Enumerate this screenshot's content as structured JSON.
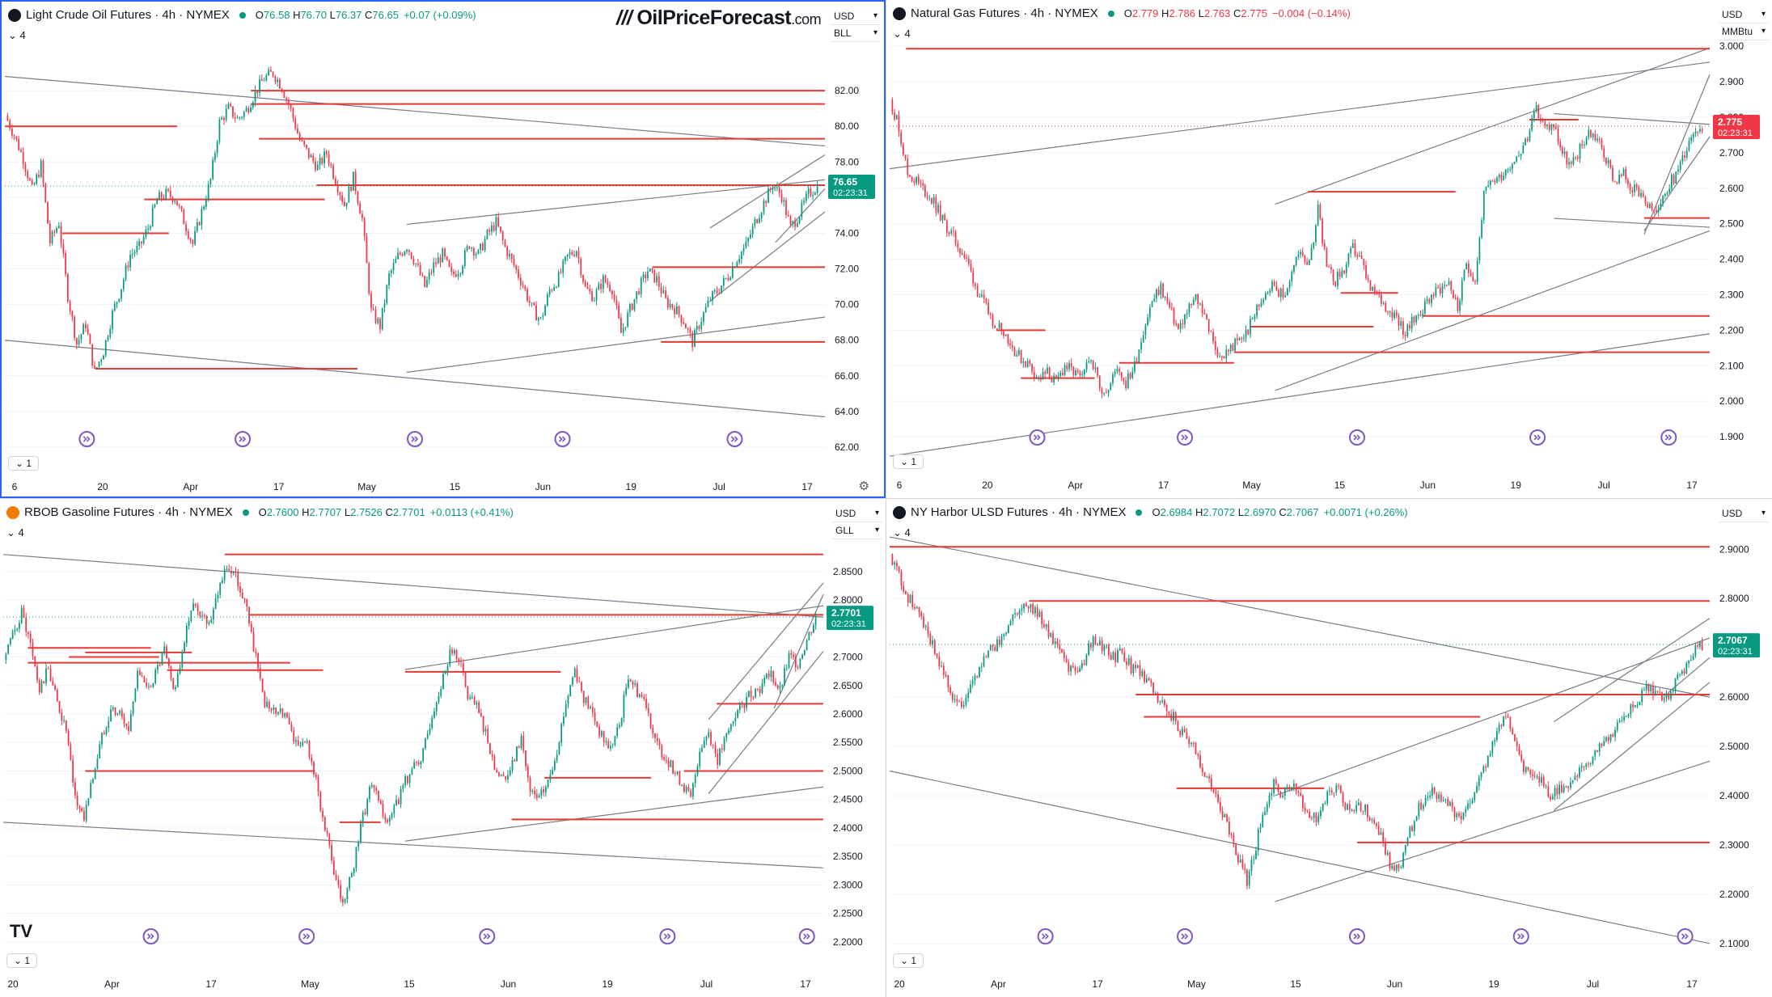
{
  "brand": {
    "watermark_slashes": "///",
    "watermark_name": "OilPriceForecast",
    "watermark_tld": ".com",
    "tv_logo": "TV"
  },
  "panes": [
    {
      "id": "cl",
      "icon": "oil-drop-icon",
      "icon_glyph": "●",
      "icon_color": "#131722",
      "title": "Light Crude Oil Futures · 4h · NYMEX",
      "ohlc": [
        {
          "k": "O",
          "v": "76.58"
        },
        {
          "k": "H",
          "v": "76.70"
        },
        {
          "k": "L",
          "v": "76.37"
        },
        {
          "k": "C",
          "v": "76.65"
        }
      ],
      "change": "+0.07 (+0.09%)",
      "change_color": "#089981",
      "interval_label": "4",
      "currency": "USD",
      "unit": "BLL",
      "bottom_label": "1",
      "last_price": "76.65",
      "countdown": "02:23:31",
      "tag_color": "#089981",
      "ylim": [
        61.5,
        85
      ],
      "yticks": [
        62,
        64,
        66,
        68,
        70,
        72,
        74,
        76,
        78,
        80,
        82
      ],
      "ytick_labels": [
        "62.00",
        "64.00",
        "66.00",
        "68.00",
        "70.00",
        "72.00",
        "74.00",
        "78.00",
        "80.00",
        "82.00"
      ],
      "xticks": [
        "6",
        "20",
        "Apr",
        "17",
        "May",
        "15",
        "Jun",
        "19",
        "Jul",
        "17"
      ],
      "levels": [
        {
          "y": 82.0,
          "x0": 0.3,
          "x1": 1.0
        },
        {
          "y": 81.25,
          "x0": 0.3,
          "x1": 1.0
        },
        {
          "y": 80.0,
          "x0": 0.0,
          "x1": 0.21
        },
        {
          "y": 79.3,
          "x0": 0.31,
          "x1": 1.0
        },
        {
          "y": 76.7,
          "x0": 0.38,
          "x1": 1.0
        },
        {
          "y": 75.9,
          "x0": 0.17,
          "x1": 0.39
        },
        {
          "y": 74.0,
          "x0": 0.07,
          "x1": 0.2
        },
        {
          "y": 72.1,
          "x0": 0.79,
          "x1": 1.0
        },
        {
          "y": 67.9,
          "x0": 0.8,
          "x1": 1.0
        },
        {
          "y": 66.4,
          "x0": 0.11,
          "x1": 0.43
        }
      ],
      "trendlines": [
        {
          "p0": [
            0.0,
            82.8
          ],
          "p1": [
            1.0,
            78.9
          ]
        },
        {
          "p0": [
            0.0,
            68.0
          ],
          "p1": [
            1.0,
            63.7
          ]
        },
        {
          "p0": [
            0.49,
            74.5
          ],
          "p1": [
            1.0,
            77.0
          ]
        },
        {
          "p0": [
            0.49,
            66.2
          ],
          "p1": [
            1.0,
            69.3
          ]
        },
        {
          "p0": [
            0.86,
            74.3
          ],
          "p1": [
            1.0,
            78.4
          ]
        },
        {
          "p0": [
            0.86,
            70.2
          ],
          "p1": [
            1.0,
            75.2
          ]
        },
        {
          "p0": [
            0.94,
            73.5
          ],
          "p1": [
            1.0,
            76.5
          ]
        }
      ],
      "series": [
        80.6,
        79.5,
        78.2,
        76.4,
        77.8,
        73.5,
        74.6,
        70.5,
        67.8,
        68.9,
        66.2,
        67.4,
        69.5,
        71.0,
        72.8,
        73.2,
        74.3,
        75.9,
        76.2,
        76.0,
        74.7,
        73.4,
        75.2,
        77.0,
        80.2,
        81.0,
        80.4,
        80.9,
        81.9,
        82.7,
        83.0,
        82.2,
        80.9,
        79.2,
        78.4,
        77.7,
        78.5,
        77.0,
        75.6,
        77.1,
        74.8,
        69.6,
        68.8,
        71.6,
        72.7,
        73.3,
        72.3,
        71.0,
        72.2,
        72.8,
        71.6,
        72.1,
        73.4,
        72.8,
        73.9,
        74.6,
        73.2,
        72.2,
        71.1,
        69.8,
        69.1,
        70.8,
        71.5,
        72.7,
        73.1,
        70.9,
        70.4,
        71.4,
        70.9,
        68.4,
        69.7,
        70.9,
        71.9,
        71.4,
        70.2,
        69.8,
        69.1,
        67.9,
        69.2,
        70.3,
        70.9,
        71.6,
        72.6,
        73.3,
        74.6,
        75.7,
        76.7,
        76.1,
        74.3,
        75.1,
        76.2,
        76.65
      ],
      "ttl_markers": [
        0.1,
        0.29,
        0.5,
        0.68,
        0.89
      ]
    },
    {
      "id": "ng",
      "icon": "flame-icon",
      "icon_glyph": "●",
      "icon_color": "#131722",
      "title": "Natural Gas Futures · 4h · NYMEX",
      "ohlc": [
        {
          "k": "O",
          "v": "2.779"
        },
        {
          "k": "H",
          "v": "2.786"
        },
        {
          "k": "L",
          "v": "2.763"
        },
        {
          "k": "C",
          "v": "2.775"
        }
      ],
      "change": "−0.004 (−0.14%)",
      "change_color": "#f23645",
      "interval_label": "4",
      "currency": "USD",
      "unit": "MMBtu",
      "bottom_label": "1",
      "last_price": "2.775",
      "countdown": "02:23:31",
      "tag_color": "#f23645",
      "ylim": [
        1.85,
        3.03
      ],
      "yticks": [
        1.9,
        2.0,
        2.1,
        2.2,
        2.3,
        2.4,
        2.5,
        2.6,
        2.7,
        2.8,
        2.9,
        3.0
      ],
      "ytick_labels": [
        "1.900",
        "2.000",
        "2.100",
        "2.200",
        "2.300",
        "2.400",
        "2.500",
        "2.600",
        "2.700",
        "2.800",
        "2.900",
        "3.000"
      ],
      "xticks": [
        "6",
        "20",
        "Apr",
        "17",
        "May",
        "15",
        "Jun",
        "19",
        "Jul",
        "17"
      ],
      "levels": [
        {
          "y": 2.993,
          "x0": 0.02,
          "x1": 1.0
        },
        {
          "y": 2.793,
          "x0": 0.78,
          "x1": 0.84
        },
        {
          "y": 2.59,
          "x0": 0.51,
          "x1": 0.69
        },
        {
          "y": 2.516,
          "x0": 0.92,
          "x1": 1.0
        },
        {
          "y": 2.305,
          "x0": 0.55,
          "x1": 0.62
        },
        {
          "y": 2.24,
          "x0": 0.65,
          "x1": 1.0
        },
        {
          "y": 2.21,
          "x0": 0.44,
          "x1": 0.59
        },
        {
          "y": 2.2,
          "x0": 0.13,
          "x1": 0.19
        },
        {
          "y": 2.138,
          "x0": 0.42,
          "x1": 1.0
        },
        {
          "y": 2.108,
          "x0": 0.28,
          "x1": 0.42
        },
        {
          "y": 2.065,
          "x0": 0.16,
          "x1": 0.25
        }
      ],
      "trendlines": [
        {
          "p0": [
            0.0,
            2.655
          ],
          "p1": [
            1.0,
            2.955
          ]
        },
        {
          "p0": [
            0.0,
            1.845
          ],
          "p1": [
            1.0,
            2.19
          ]
        },
        {
          "p0": [
            0.47,
            2.555
          ],
          "p1": [
            1.0,
            2.995
          ]
        },
        {
          "p0": [
            0.47,
            2.03
          ],
          "p1": [
            1.0,
            2.48
          ]
        },
        {
          "p0": [
            0.81,
            2.81
          ],
          "p1": [
            1.0,
            2.78
          ]
        },
        {
          "p0": [
            0.81,
            2.515
          ],
          "p1": [
            1.0,
            2.49
          ]
        },
        {
          "p0": [
            0.92,
            2.47
          ],
          "p1": [
            1.0,
            2.92
          ]
        },
        {
          "p0": [
            0.92,
            2.48
          ],
          "p1": [
            1.0,
            2.745
          ]
        }
      ],
      "series": [
        2.85,
        2.77,
        2.64,
        2.62,
        2.59,
        2.56,
        2.51,
        2.47,
        2.43,
        2.38,
        2.31,
        2.26,
        2.22,
        2.2,
        2.15,
        2.12,
        2.1,
        2.06,
        2.08,
        2.05,
        2.1,
        2.08,
        2.06,
        2.13,
        2.04,
        2.03,
        2.1,
        2.05,
        2.1,
        2.2,
        2.28,
        2.32,
        2.26,
        2.2,
        2.25,
        2.29,
        2.25,
        2.16,
        2.12,
        2.15,
        2.17,
        2.2,
        2.26,
        2.31,
        2.33,
        2.29,
        2.36,
        2.43,
        2.38,
        2.55,
        2.37,
        2.34,
        2.37,
        2.43,
        2.39,
        2.31,
        2.29,
        2.26,
        2.24,
        2.19,
        2.23,
        2.26,
        2.3,
        2.32,
        2.34,
        2.26,
        2.39,
        2.34,
        2.58,
        2.62,
        2.64,
        2.67,
        2.7,
        2.74,
        2.82,
        2.77,
        2.78,
        2.7,
        2.66,
        2.71,
        2.76,
        2.74,
        2.68,
        2.62,
        2.64,
        2.6,
        2.57,
        2.54,
        2.53,
        2.6,
        2.64,
        2.7,
        2.77,
        2.775
      ],
      "ttl_markers": [
        0.18,
        0.36,
        0.57,
        0.79,
        0.95
      ]
    },
    {
      "id": "rb",
      "icon": "gasoline-icon",
      "icon_glyph": "●",
      "icon_color": "#f57c00",
      "title": "RBOB Gasoline Futures · 4h · NYMEX",
      "ohlc": [
        {
          "k": "O",
          "v": "2.7600"
        },
        {
          "k": "H",
          "v": "2.7707"
        },
        {
          "k": "L",
          "v": "2.7526"
        },
        {
          "k": "C",
          "v": "2.7701"
        }
      ],
      "change": "+0.0113 (+0.41%)",
      "change_color": "#089981",
      "interval_label": "4",
      "currency": "USD",
      "unit": "GLL",
      "bottom_label": "1",
      "last_price": "2.7701",
      "countdown": "02:23:31",
      "tag_color": "#089981",
      "ylim": [
        2.18,
        2.915
      ],
      "yticks": [
        2.2,
        2.25,
        2.3,
        2.35,
        2.4,
        2.45,
        2.5,
        2.55,
        2.6,
        2.65,
        2.7,
        2.75,
        2.8,
        2.85
      ],
      "ytick_labels": [
        "2.2000",
        "2.2500",
        "2.3000",
        "2.3500",
        "2.4000",
        "2.4500",
        "2.5000",
        "2.5500",
        "2.6000",
        "2.6500",
        "2.7000",
        "2.8000",
        "2.8500"
      ],
      "xticks": [
        "20",
        "Apr",
        "17",
        "May",
        "15",
        "Jun",
        "19",
        "Jul",
        "17"
      ],
      "levels": [
        {
          "y": 2.88,
          "x0": 0.27,
          "x1": 1.0
        },
        {
          "y": 2.774,
          "x0": 0.3,
          "x1": 1.0
        },
        {
          "y": 2.716,
          "x0": 0.03,
          "x1": 0.18
        },
        {
          "y": 2.708,
          "x0": 0.1,
          "x1": 0.23
        },
        {
          "y": 2.7,
          "x0": 0.08,
          "x1": 0.19
        },
        {
          "y": 2.69,
          "x0": 0.03,
          "x1": 0.35
        },
        {
          "y": 2.677,
          "x0": 0.2,
          "x1": 0.39
        },
        {
          "y": 2.674,
          "x0": 0.49,
          "x1": 0.68
        },
        {
          "y": 2.618,
          "x0": 0.87,
          "x1": 1.0
        },
        {
          "y": 2.5,
          "x0": 0.1,
          "x1": 0.38
        },
        {
          "y": 2.5,
          "x0": 0.83,
          "x1": 1.0
        },
        {
          "y": 2.488,
          "x0": 0.66,
          "x1": 0.79
        },
        {
          "y": 2.415,
          "x0": 0.62,
          "x1": 1.0
        },
        {
          "y": 2.41,
          "x0": 0.41,
          "x1": 0.46
        }
      ],
      "trendlines": [
        {
          "p0": [
            0.0,
            2.88
          ],
          "p1": [
            1.0,
            2.77
          ]
        },
        {
          "p0": [
            0.0,
            2.41
          ],
          "p1": [
            1.0,
            2.33
          ]
        },
        {
          "p0": [
            0.49,
            2.678
          ],
          "p1": [
            1.0,
            2.79
          ]
        },
        {
          "p0": [
            0.49,
            2.377
          ],
          "p1": [
            1.0,
            2.472
          ]
        },
        {
          "p0": [
            0.86,
            2.59
          ],
          "p1": [
            1.0,
            2.83
          ]
        },
        {
          "p0": [
            0.86,
            2.46
          ],
          "p1": [
            1.0,
            2.71
          ]
        },
        {
          "p0": [
            0.94,
            2.61
          ],
          "p1": [
            1.0,
            2.81
          ]
        }
      ],
      "series": [
        2.695,
        2.735,
        2.78,
        2.72,
        2.64,
        2.68,
        2.62,
        2.57,
        2.45,
        2.42,
        2.49,
        2.56,
        2.61,
        2.6,
        2.57,
        2.68,
        2.64,
        2.67,
        2.71,
        2.64,
        2.7,
        2.79,
        2.78,
        2.76,
        2.82,
        2.86,
        2.84,
        2.8,
        2.72,
        2.63,
        2.6,
        2.61,
        2.58,
        2.54,
        2.55,
        2.48,
        2.4,
        2.32,
        2.26,
        2.32,
        2.4,
        2.47,
        2.45,
        2.4,
        2.44,
        2.48,
        2.51,
        2.53,
        2.6,
        2.65,
        2.71,
        2.7,
        2.63,
        2.61,
        2.57,
        2.51,
        2.48,
        2.51,
        2.56,
        2.46,
        2.45,
        2.48,
        2.54,
        2.62,
        2.68,
        2.63,
        2.6,
        2.56,
        2.54,
        2.58,
        2.67,
        2.64,
        2.62,
        2.55,
        2.53,
        2.5,
        2.48,
        2.45,
        2.54,
        2.57,
        2.52,
        2.56,
        2.6,
        2.62,
        2.64,
        2.65,
        2.67,
        2.64,
        2.7,
        2.69,
        2.73,
        2.7701
      ],
      "ttl_markers": [
        0.18,
        0.37,
        0.59,
        0.81,
        0.98
      ]
    },
    {
      "id": "ho",
      "icon": "barrel-icon",
      "icon_glyph": "●",
      "icon_color": "#131722",
      "title": "NY Harbor ULSD Futures · 4h · NYMEX",
      "ohlc": [
        {
          "k": "O",
          "v": "2.6984"
        },
        {
          "k": "H",
          "v": "2.7072"
        },
        {
          "k": "L",
          "v": "2.6970"
        },
        {
          "k": "C",
          "v": "2.7067"
        }
      ],
      "change": "+0.0071 (+0.26%)",
      "change_color": "#089981",
      "interval_label": "4",
      "currency": "USD",
      "unit": "",
      "bottom_label": "1",
      "last_price": "2.7067",
      "countdown": "02:23:31",
      "tag_color": "#089981",
      "ylim": [
        2.08,
        2.93
      ],
      "yticks": [
        2.1,
        2.2,
        2.3,
        2.4,
        2.5,
        2.6,
        2.7,
        2.8,
        2.9
      ],
      "ytick_labels": [
        "2.1000",
        "2.2000",
        "2.3000",
        "2.4000",
        "2.5000",
        "2.6000",
        "2.8000",
        "2.9000"
      ],
      "xticks": [
        "20",
        "Apr",
        "17",
        "May",
        "15",
        "Jun",
        "19",
        "Jul",
        "17"
      ],
      "levels": [
        {
          "y": 2.905,
          "x0": 0.0,
          "x1": 1.0
        },
        {
          "y": 2.795,
          "x0": 0.17,
          "x1": 1.0
        },
        {
          "y": 2.605,
          "x0": 0.3,
          "x1": 1.0
        },
        {
          "y": 2.56,
          "x0": 0.31,
          "x1": 0.72
        },
        {
          "y": 2.415,
          "x0": 0.35,
          "x1": 0.53
        },
        {
          "y": 2.305,
          "x0": 0.57,
          "x1": 1.0
        }
      ],
      "trendlines": [
        {
          "p0": [
            0.0,
            2.925
          ],
          "p1": [
            1.0,
            2.6
          ]
        },
        {
          "p0": [
            0.0,
            2.45
          ],
          "p1": [
            1.0,
            2.1
          ]
        },
        {
          "p0": [
            0.47,
            2.4
          ],
          "p1": [
            1.0,
            2.72
          ]
        },
        {
          "p0": [
            0.47,
            2.185
          ],
          "p1": [
            1.0,
            2.47
          ]
        },
        {
          "p0": [
            0.81,
            2.55
          ],
          "p1": [
            1.0,
            2.76
          ]
        },
        {
          "p0": [
            0.81,
            2.37
          ],
          "p1": [
            1.0,
            2.63
          ]
        },
        {
          "p0": [
            0.95,
            2.61
          ],
          "p1": [
            1.0,
            2.68
          ]
        }
      ],
      "series": [
        2.89,
        2.85,
        2.8,
        2.78,
        2.74,
        2.7,
        2.65,
        2.6,
        2.58,
        2.62,
        2.66,
        2.69,
        2.71,
        2.73,
        2.77,
        2.79,
        2.78,
        2.76,
        2.72,
        2.7,
        2.66,
        2.64,
        2.69,
        2.72,
        2.7,
        2.68,
        2.69,
        2.66,
        2.65,
        2.63,
        2.6,
        2.58,
        2.55,
        2.52,
        2.5,
        2.46,
        2.42,
        2.38,
        2.33,
        2.27,
        2.23,
        2.3,
        2.38,
        2.43,
        2.4,
        2.42,
        2.39,
        2.35,
        2.36,
        2.4,
        2.42,
        2.38,
        2.37,
        2.38,
        2.35,
        2.32,
        2.26,
        2.25,
        2.31,
        2.37,
        2.4,
        2.41,
        2.39,
        2.37,
        2.35,
        2.38,
        2.43,
        2.48,
        2.53,
        2.56,
        2.52,
        2.46,
        2.43,
        2.44,
        2.4,
        2.41,
        2.42,
        2.45,
        2.46,
        2.48,
        2.51,
        2.53,
        2.56,
        2.58,
        2.6,
        2.62,
        2.61,
        2.6,
        2.63,
        2.66,
        2.69,
        2.7067
      ],
      "ttl_markers": [
        0.19,
        0.36,
        0.57,
        0.77,
        0.97
      ]
    }
  ]
}
